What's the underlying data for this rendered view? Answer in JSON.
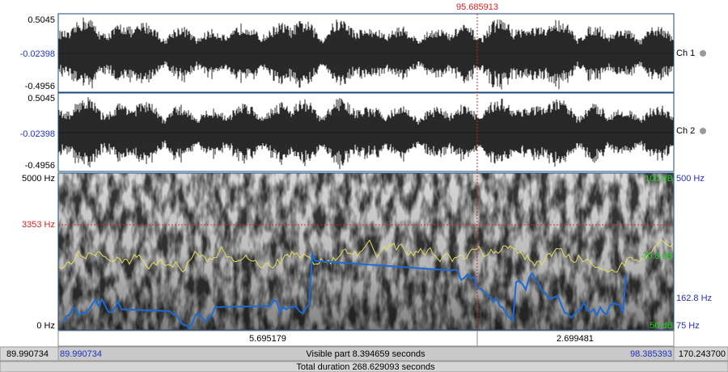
{
  "cursor_time": "95.685913",
  "channels": [
    {
      "name": "Ch 1",
      "max": "0.5045",
      "mid": "-0.02398",
      "min": "-0.4956"
    },
    {
      "name": "Ch 2",
      "max": "0.5045",
      "mid": "-0.02398",
      "min": "-0.4956"
    }
  ],
  "spectrogram": {
    "freq_max": "5000 Hz",
    "cursor_freq": "3353 Hz",
    "freq_min": "0 Hz",
    "intensity_max": "100 dB",
    "intensity_mid": "70.8 dB",
    "intensity_min": "50 dB",
    "pitch_max": "500 Hz",
    "pitch_cursor": "162.8 Hz",
    "pitch_min": "75 Hz"
  },
  "selection": {
    "left_duration": "5.695179",
    "right_duration": "2.699481"
  },
  "visible": {
    "window_start": "89.990734",
    "start": "89.990734",
    "label": "Visible part 8.394659 seconds",
    "end": "98.385393",
    "window_end": "170.243700"
  },
  "total": "Total duration 268.629093 seconds"
}
